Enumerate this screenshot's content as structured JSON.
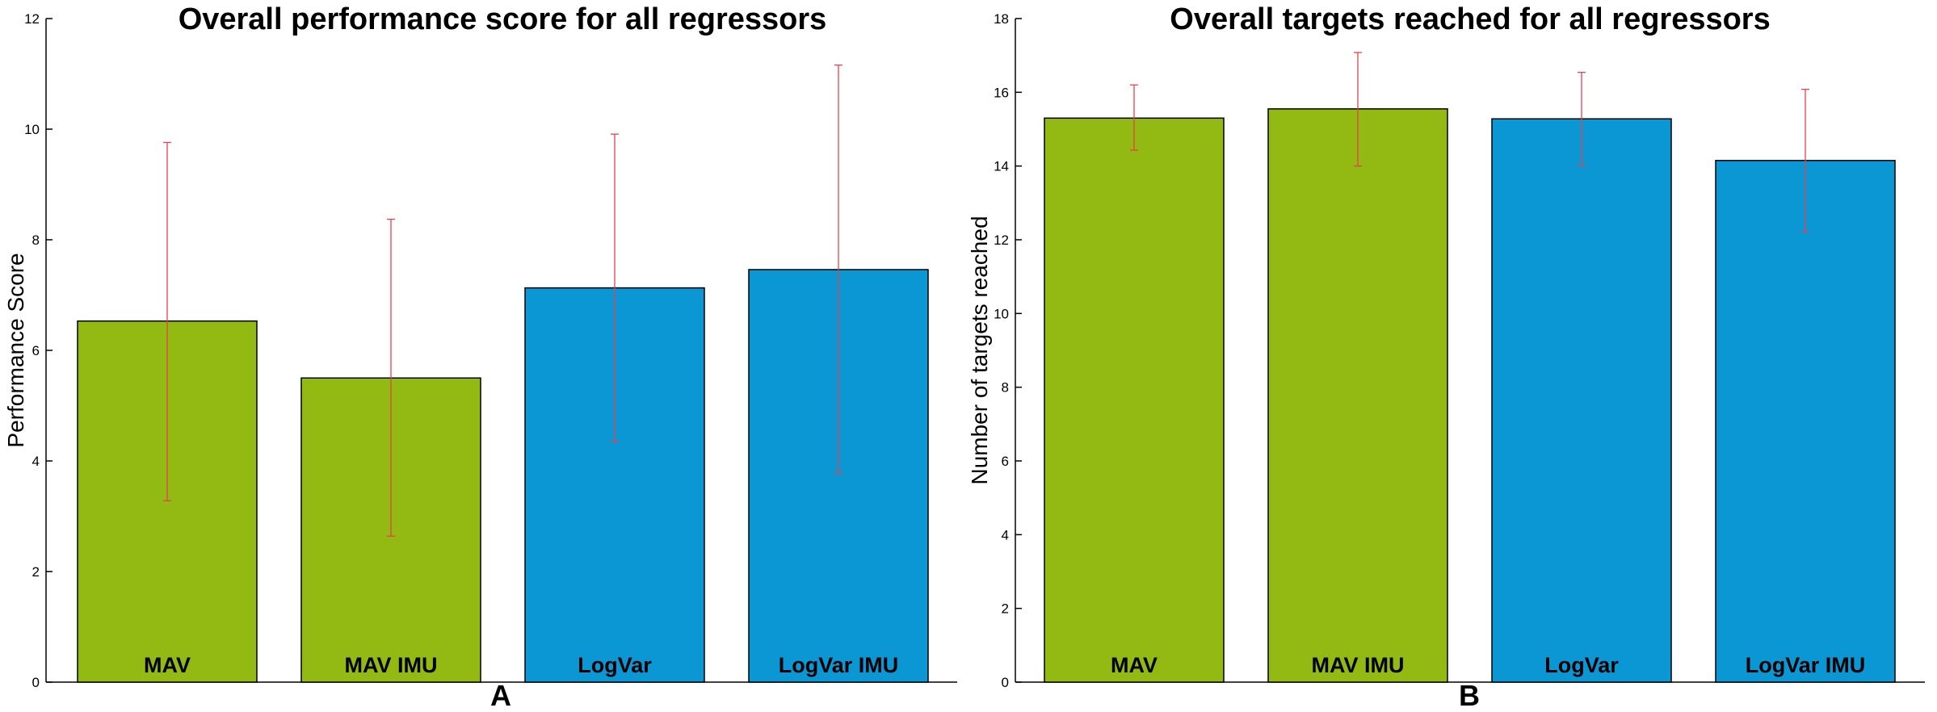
{
  "colors": {
    "green": "#93BA12",
    "blue": "#0B96D4",
    "error_bar": "#E8404F",
    "axis": "#000000"
  },
  "chart_data": [
    {
      "type": "bar",
      "title": "Overall performance score for all regressors",
      "ylabel": "Performance Score",
      "panel_label": "A",
      "ylim": [
        0,
        12
      ],
      "yticks": [
        0,
        2,
        4,
        6,
        8,
        10,
        12
      ],
      "grid": false,
      "categories": [
        "MAV",
        "MAV IMU",
        "LogVar",
        "LogVar IMU"
      ],
      "values": [
        6.53,
        5.5,
        7.13,
        7.46
      ],
      "error_low": [
        3.28,
        2.64,
        4.35,
        3.78
      ],
      "error_high": [
        9.76,
        8.37,
        9.91,
        11.16
      ],
      "bar_colors": [
        "green",
        "green",
        "blue",
        "blue"
      ]
    },
    {
      "type": "bar",
      "title": "Overall targets reached for all regressors",
      "ylabel": "Number of targets reached",
      "panel_label": "B",
      "ylim": [
        0,
        18
      ],
      "yticks": [
        0,
        2,
        4,
        6,
        8,
        10,
        12,
        14,
        16,
        18
      ],
      "grid": false,
      "categories": [
        "MAV",
        "MAV IMU",
        "LogVar",
        "LogVar IMU"
      ],
      "values": [
        15.3,
        15.55,
        15.28,
        14.15
      ],
      "error_low": [
        14.43,
        14.0,
        14.02,
        12.22
      ],
      "error_high": [
        16.2,
        17.08,
        16.54,
        16.08
      ],
      "bar_colors": [
        "green",
        "green",
        "blue",
        "blue"
      ]
    }
  ]
}
